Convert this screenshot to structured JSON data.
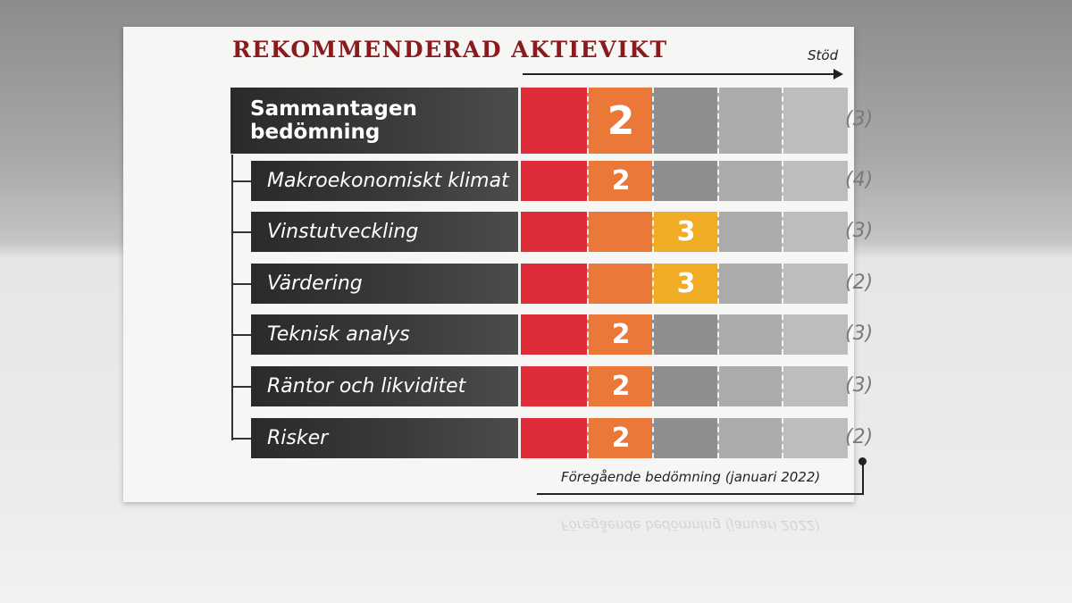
{
  "title": "REKOMMENDERAD AKTIEVIKT",
  "axis_label": "Stöd",
  "footnote": "Föregående bedömning (januari 2022)",
  "colors": {
    "title": "#8b1a1e",
    "scale": [
      "#de2c3a",
      "#ea7838",
      "#f0ac24",
      "#8e8e8e",
      "#ababab",
      "#bdbdbd"
    ],
    "scale_inactive": [
      "#de2c3a",
      "#ea7838",
      "#8e8e8e",
      "#ababab",
      "#bdbdbd"
    ],
    "previous_text": "#7a7a7a"
  },
  "chart_data": {
    "type": "table",
    "scale_max": 5,
    "overall": {
      "label": "Sammantagen bedömning",
      "score": 2,
      "score_label": "2",
      "previous": 3,
      "previous_label": "(3)"
    },
    "rows": [
      {
        "label": "Makroekonomiskt klimat",
        "score": 2,
        "score_label": "2",
        "previous": 4,
        "previous_label": "(4)"
      },
      {
        "label": "Vinstutveckling",
        "score": 3,
        "score_label": "3",
        "previous": 3,
        "previous_label": "(3)"
      },
      {
        "label": "Värdering",
        "score": 3,
        "score_label": "3",
        "previous": 2,
        "previous_label": "(2)"
      },
      {
        "label": "Teknisk analys",
        "score": 2,
        "score_label": "2",
        "previous": 3,
        "previous_label": "(3)"
      },
      {
        "label": "Räntor och likviditet",
        "score": 2,
        "score_label": "2",
        "previous": 3,
        "previous_label": "(3)"
      },
      {
        "label": "Risker",
        "score": 2,
        "score_label": "2",
        "previous": 2,
        "previous_label": "(2)"
      }
    ]
  }
}
